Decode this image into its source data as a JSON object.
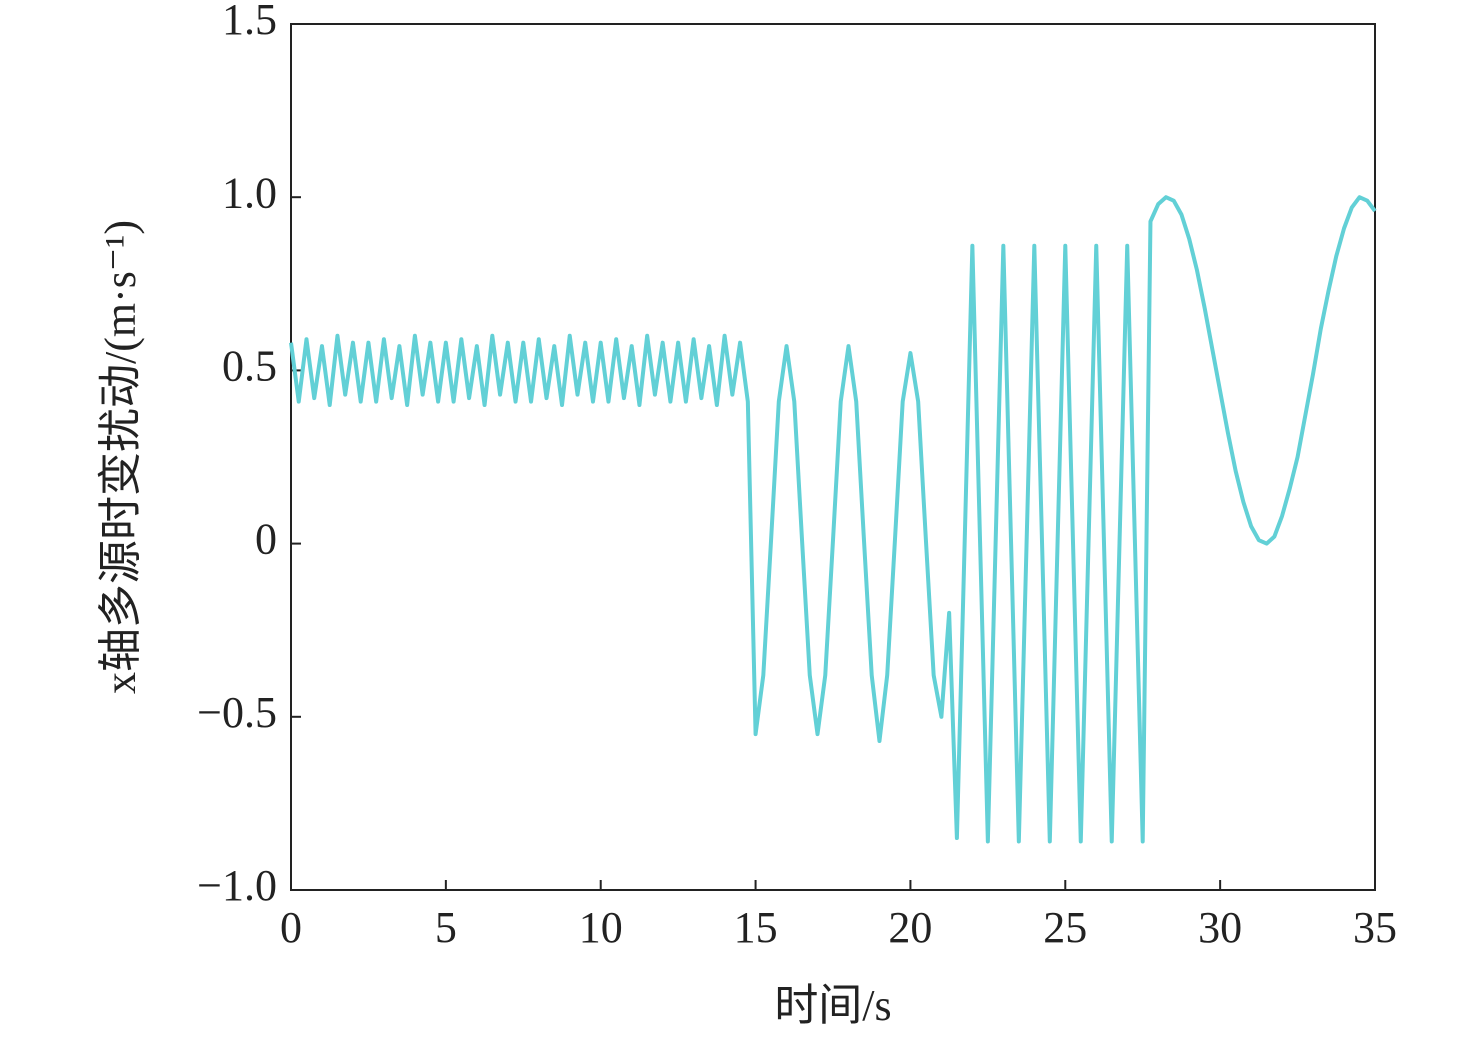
{
  "chart_data": {
    "type": "line",
    "xlabel": "时间/s",
    "ylabel": "x轴多源时变扰动/(m·s⁻¹)",
    "xlim": [
      0,
      35
    ],
    "xticks": [
      0,
      5,
      10,
      15,
      20,
      25,
      30,
      35
    ],
    "ylim": [
      -1,
      1.5
    ],
    "yticks": [
      {
        "value": -1,
        "label": "−1.0"
      },
      {
        "value": -0.5,
        "label": "−0.5"
      },
      0,
      0.5,
      {
        "value": 1,
        "label": "1.0"
      },
      1.5
    ],
    "grid": false,
    "x": [
      0,
      0.25,
      0.5,
      0.75,
      1,
      1.25,
      1.5,
      1.75,
      2,
      2.25,
      2.5,
      2.75,
      3,
      3.25,
      3.5,
      3.75,
      4,
      4.25,
      4.5,
      4.75,
      5,
      5.25,
      5.5,
      5.75,
      6,
      6.25,
      6.5,
      6.75,
      7,
      7.25,
      7.5,
      7.75,
      8,
      8.25,
      8.5,
      8.75,
      9,
      9.25,
      9.5,
      9.75,
      10,
      10.25,
      10.5,
      10.75,
      11,
      11.25,
      11.5,
      11.75,
      12,
      12.25,
      12.5,
      12.75,
      13,
      13.25,
      13.5,
      13.75,
      14,
      14.25,
      14.5,
      14.75,
      15,
      15.25,
      15.5,
      15.75,
      16,
      16.25,
      16.5,
      16.75,
      17,
      17.25,
      17.5,
      17.75,
      18,
      18.25,
      18.5,
      18.75,
      19,
      19.25,
      19.5,
      19.75,
      20,
      20.25,
      20.5,
      20.75,
      21,
      21.25,
      21.5,
      21.75,
      22,
      22.25,
      22.5,
      22.75,
      23,
      23.25,
      23.5,
      23.75,
      24,
      24.25,
      24.5,
      24.75,
      25,
      25.25,
      25.5,
      25.75,
      26,
      26.25,
      26.5,
      26.75,
      27,
      27.25,
      27.5,
      27.75,
      28,
      28.25,
      28.5,
      28.75,
      29,
      29.25,
      29.5,
      29.75,
      30,
      30.25,
      30.5,
      30.75,
      31,
      31.25,
      31.5,
      31.75,
      32,
      32.25,
      32.5,
      32.75,
      33,
      33.25,
      33.5,
      33.75,
      34,
      34.25,
      34.5,
      34.75,
      35
    ],
    "series": [
      {
        "color": "#62d0d6",
        "values": [
          0.58,
          0.41,
          0.59,
          0.42,
          0.57,
          0.4,
          0.6,
          0.43,
          0.58,
          0.41,
          0.58,
          0.41,
          0.59,
          0.42,
          0.57,
          0.4,
          0.6,
          0.43,
          0.58,
          0.41,
          0.58,
          0.41,
          0.59,
          0.42,
          0.57,
          0.4,
          0.6,
          0.43,
          0.58,
          0.41,
          0.58,
          0.41,
          0.59,
          0.42,
          0.57,
          0.4,
          0.6,
          0.43,
          0.58,
          0.41,
          0.58,
          0.41,
          0.59,
          0.42,
          0.57,
          0.4,
          0.6,
          0.43,
          0.58,
          0.41,
          0.58,
          0.41,
          0.59,
          0.42,
          0.57,
          0.4,
          0.6,
          0.43,
          0.58,
          0.41,
          -0.55,
          -0.38,
          0.01,
          0.41,
          0.57,
          0.41,
          0.01,
          -0.38,
          -0.55,
          -0.38,
          0.01,
          0.41,
          0.57,
          0.41,
          0.01,
          -0.38,
          -0.57,
          -0.38,
          0.01,
          0.41,
          0.55,
          0.41,
          0.01,
          -0.38,
          -0.5,
          -0.2,
          -0.85,
          0,
          0.86,
          0,
          -0.86,
          0,
          0.86,
          0,
          -0.86,
          0,
          0.86,
          0,
          -0.86,
          0,
          0.86,
          0,
          -0.86,
          0,
          0.86,
          0,
          -0.86,
          0,
          0.86,
          0,
          -0.86,
          0.93,
          0.98,
          1.0,
          0.99,
          0.95,
          0.88,
          0.79,
          0.68,
          0.56,
          0.44,
          0.32,
          0.21,
          0.12,
          0.05,
          0.01,
          0.0,
          0.02,
          0.08,
          0.16,
          0.25,
          0.37,
          0.49,
          0.62,
          0.73,
          0.83,
          0.91,
          0.97,
          1.0,
          0.99,
          0.96
        ]
      }
    ]
  }
}
